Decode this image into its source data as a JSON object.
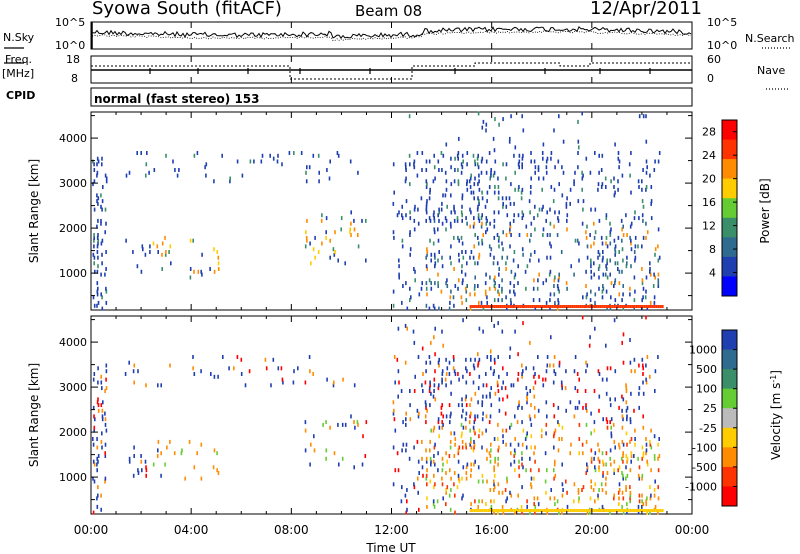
{
  "header": {
    "station": "Syowa South (fitACF)",
    "beam": "Beam 08",
    "date": "12/Apr/2011"
  },
  "left_labels": {
    "nsky": "N.Sky",
    "freq": "Freq.",
    "freq_unit": "[MHz]",
    "cpid": "CPID"
  },
  "right_labels": {
    "nsearch": "N.Search",
    "nave": "Nave"
  },
  "cpid_text": "normal (fast stereo) 153",
  "colors": {
    "scatter_blue": "#1f3fb0",
    "power_scale": [
      "#0000ff",
      "#1f3fb0",
      "#2f6b8f",
      "#3a8f6a",
      "#66cc33",
      "#ffcc00",
      "#ff8c00",
      "#ff3300",
      "#ff0000"
    ],
    "velocity_scale": [
      "#1f3fb0",
      "#2f6b8f",
      "#3a8f6a",
      "#66cc33",
      "#bbbbbb",
      "#ffcc00",
      "#ff8c00",
      "#ff3300",
      "#ff0000"
    ]
  },
  "chart_data": [
    {
      "type": "line",
      "panel": "noise",
      "yticks": [
        "10^5",
        "10^0"
      ],
      "yticks_right": [
        "10^5",
        "10^0"
      ],
      "legend": [
        "N.Sky",
        "N.Search"
      ]
    },
    {
      "type": "line",
      "panel": "frequency",
      "yticks": [
        "18",
        "8"
      ],
      "yticks_right": [
        "60",
        "0"
      ],
      "legend": [
        "Freq.",
        "Nave"
      ]
    },
    {
      "type": "heatmap",
      "panel": "power",
      "title": "Power [dB]",
      "ylabel": "Slant Range [km]",
      "ylim": [
        180,
        4580
      ],
      "yticks": [
        1000,
        2000,
        3000,
        4000
      ],
      "colorbar_range": [
        0,
        30
      ],
      "colorbar_ticks": [
        4,
        8,
        12,
        16,
        20,
        24,
        28
      ]
    },
    {
      "type": "heatmap",
      "panel": "velocity",
      "title": "Velocity [m s^-1]",
      "ylabel": "Slant Range [km]",
      "ylim": [
        180,
        4580
      ],
      "yticks": [
        1000,
        2000,
        3000,
        4000
      ],
      "colorbar_ticks": [
        "1000",
        "500",
        "100",
        "25",
        "-25",
        "-100",
        "-500",
        "-1000"
      ],
      "xlabel": "Time UT",
      "xticks": [
        "00:00",
        "04:00",
        "08:00",
        "12:00",
        "16:00",
        "20:00",
        "00:00"
      ]
    }
  ]
}
